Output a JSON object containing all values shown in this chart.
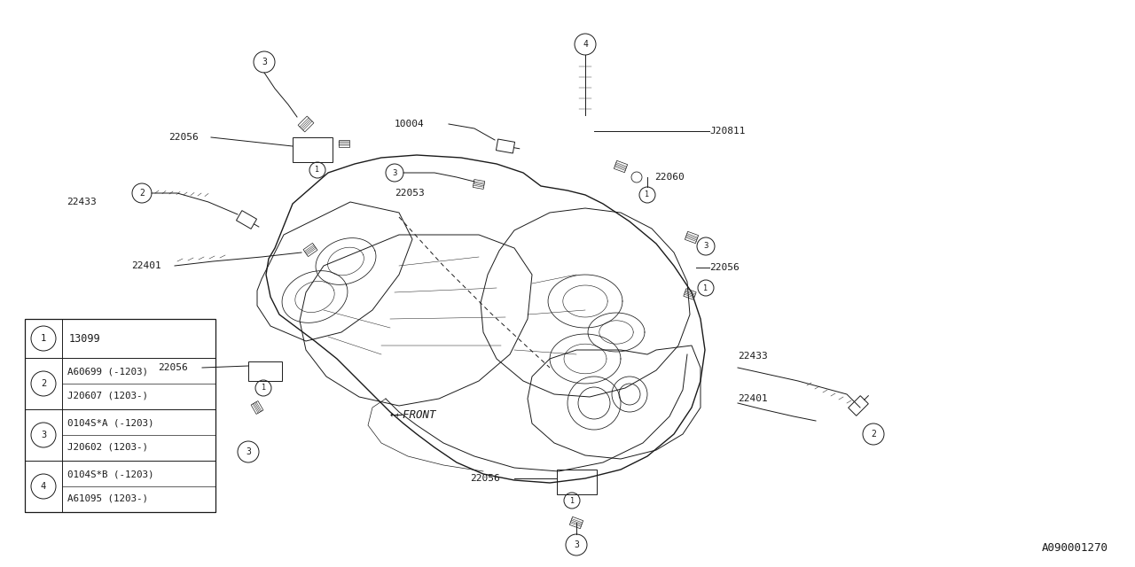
{
  "bg_color": "#ffffff",
  "line_color": "#1a1a1a",
  "diagram_id": "A090001270",
  "legend": [
    {
      "num": "1",
      "parts": [
        "13099"
      ],
      "double": false
    },
    {
      "num": "2",
      "parts": [
        "A60699 (-1203)",
        "J20607 (1203-)"
      ],
      "double": true
    },
    {
      "num": "3",
      "parts": [
        "0104S*A (-1203)",
        "J20602 (1203-)"
      ],
      "double": true
    },
    {
      "num": "4",
      "parts": [
        "0104S*B (-1203)",
        "A61095 (1203-)"
      ],
      "double": true
    }
  ],
  "fig_w": 12.8,
  "fig_h": 6.4,
  "dpi": 100
}
